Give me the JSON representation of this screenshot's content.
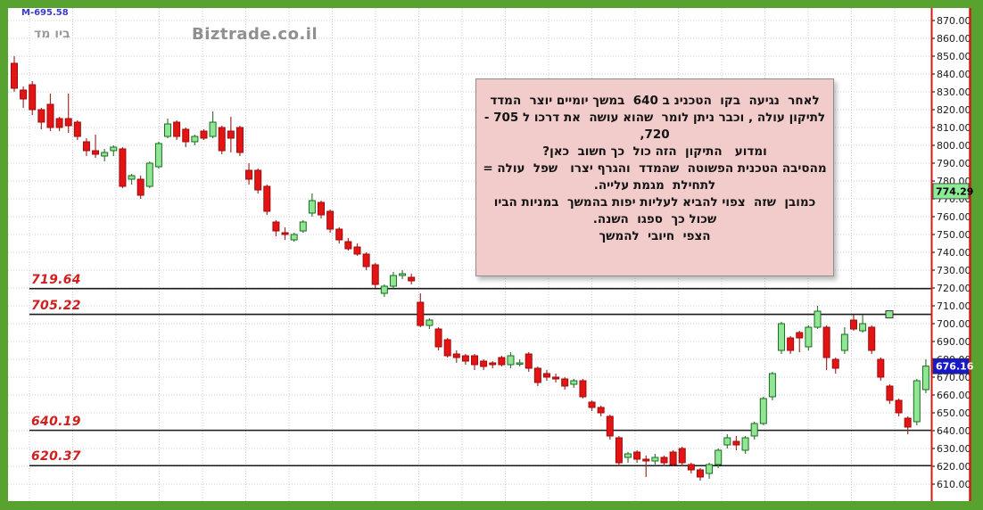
{
  "frame": {
    "border_color": "#58a22f",
    "plot_background": "#ffffff",
    "axis_border_color": "#d11a1a"
  },
  "header": {
    "readout": "M-695.58",
    "symbol": "ביו מד",
    "watermark": "Biztrade.co.il"
  },
  "annotation": {
    "bg": "#f2cbcb",
    "border": "#8f8f8f",
    "lines": [
      "לאחר  נגיעה  בקו  הטכנינ ב 640  במשך יומיים יוצר  המדד",
      "לתיקון עולה , וכבר ניתן לומר  שהוא עושה  את דרכו ל 705 -",
      "720,",
      "ומדוע   התיקון  הזה כול  כך חשוב  כאן?",
      "מהסיבה הטכנית הפשוטה  שהמדד  והגרף יצרו   שפל  עולה =",
      "לתחילת  מגמת עלייה.",
      "כמובן  שזה  צפוי להביא לעליות יפות בהמשך  במניות הביו",
      "שכול כך  ספגו  השנה.",
      "הצפי  חיובי  להמשך"
    ]
  },
  "chart_data": {
    "type": "candlestick",
    "ylim": [
      610,
      870
    ],
    "grid": true,
    "y_ticks": [
      "870.00",
      "860.00",
      "850.00",
      "840.00",
      "830.00",
      "820.00",
      "810.00",
      "800.00",
      "790.00",
      "780.00",
      "770.00",
      "760.00",
      "750.00",
      "740.00",
      "730.00",
      "720.00",
      "710.00",
      "700.00",
      "690.00",
      "680.00",
      "670.00",
      "660.00",
      "650.00",
      "640.00",
      "630.00",
      "620.00",
      "610.00"
    ],
    "up_color": "#90e693",
    "up_border": "#1a6b22",
    "down_color": "#e41414",
    "down_border": "#9c0c0c",
    "last_price_label": {
      "label": "676.16",
      "value": 676.16,
      "bg": "#1717cc",
      "fg": "#ffffff"
    },
    "highlight_label": {
      "label": "774.29",
      "value": 774.29,
      "bg": "#8cec95",
      "fg": "#000000"
    },
    "trendlines": [
      {
        "label": "719.64",
        "value": 719.64
      },
      {
        "label": "705.22",
        "value": 705.22
      },
      {
        "label": "640.19",
        "value": 640.19
      },
      {
        "label": "620.37",
        "value": 620.37
      }
    ],
    "handle": {
      "line_value": 705.22,
      "x": 997
    },
    "candles": [
      [
        846,
        850,
        830,
        832
      ],
      [
        831,
        833,
        821,
        826
      ],
      [
        834,
        836,
        817,
        820
      ],
      [
        820,
        821,
        809,
        813
      ],
      [
        823,
        829,
        808,
        810
      ],
      [
        815,
        816,
        808,
        810
      ],
      [
        815,
        829,
        807,
        811
      ],
      [
        813,
        814,
        803,
        805
      ],
      [
        802,
        804,
        794,
        797
      ],
      [
        797,
        806,
        793,
        795
      ],
      [
        794,
        798,
        791,
        796
      ],
      [
        797,
        800,
        794,
        799
      ],
      [
        798,
        799,
        776,
        777
      ],
      [
        781,
        784,
        778,
        783
      ],
      [
        781,
        783,
        770,
        772
      ],
      [
        777,
        791,
        776,
        790
      ],
      [
        788,
        802,
        787,
        801
      ],
      [
        805,
        815,
        804,
        812
      ],
      [
        813,
        814,
        803,
        805
      ],
      [
        809,
        810,
        799,
        802
      ],
      [
        802,
        806,
        800,
        805
      ],
      [
        808,
        809,
        803,
        804
      ],
      [
        805,
        819,
        804,
        813
      ],
      [
        810,
        811,
        795,
        797
      ],
      [
        808,
        816,
        796,
        804
      ],
      [
        810,
        811,
        794,
        796
      ],
      [
        786,
        790,
        778,
        781
      ],
      [
        786,
        787,
        773,
        775
      ],
      [
        777,
        778,
        761,
        763
      ],
      [
        757,
        758,
        749,
        752
      ],
      [
        751,
        754,
        747,
        750
      ],
      [
        747,
        751,
        746,
        750
      ],
      [
        752,
        758,
        751,
        757
      ],
      [
        762,
        773,
        760,
        769
      ],
      [
        768,
        769,
        759,
        761
      ],
      [
        763,
        764,
        751,
        753
      ],
      [
        753,
        754,
        745,
        747
      ],
      [
        746,
        748,
        741,
        742
      ],
      [
        743,
        745,
        738,
        739
      ],
      [
        739,
        740,
        730,
        732
      ],
      [
        733,
        734,
        720,
        722
      ],
      [
        717,
        722,
        715,
        721
      ],
      [
        721,
        729,
        720,
        727
      ],
      [
        727,
        730,
        725,
        728
      ],
      [
        726,
        728,
        722,
        724
      ],
      [
        712,
        717,
        698,
        699
      ],
      [
        699,
        703,
        697,
        702
      ],
      [
        697,
        698,
        685,
        687
      ],
      [
        691,
        692,
        681,
        682
      ],
      [
        683,
        685,
        678,
        681
      ],
      [
        682,
        683,
        677,
        679
      ],
      [
        682,
        683,
        674,
        677
      ],
      [
        679,
        680,
        674,
        676
      ],
      [
        678,
        679,
        675,
        677
      ],
      [
        681,
        682,
        676,
        677
      ],
      [
        677,
        684,
        675,
        682
      ],
      [
        678,
        680,
        676,
        678
      ],
      [
        683,
        684,
        673,
        675
      ],
      [
        675,
        676,
        665,
        667
      ],
      [
        672,
        674,
        668,
        670
      ],
      [
        670,
        672,
        667,
        669
      ],
      [
        669,
        670,
        663,
        665
      ],
      [
        666,
        669,
        664,
        668
      ],
      [
        668,
        669,
        658,
        659
      ],
      [
        656,
        657,
        651,
        653
      ],
      [
        653,
        654,
        648,
        650
      ],
      [
        648,
        649,
        635,
        637
      ],
      [
        636,
        637,
        620,
        622
      ],
      [
        625,
        628,
        622,
        627
      ],
      [
        628,
        629,
        622,
        624
      ],
      [
        624,
        626,
        614,
        623
      ],
      [
        623,
        627,
        621,
        625
      ],
      [
        625,
        626,
        620,
        622
      ],
      [
        628,
        629,
        620,
        621
      ],
      [
        630,
        631,
        620,
        622
      ],
      [
        621,
        622,
        616,
        618
      ],
      [
        618,
        619,
        612,
        614
      ],
      [
        616,
        622,
        613,
        621
      ],
      [
        621,
        630,
        619,
        629
      ],
      [
        632,
        638,
        630,
        636
      ],
      [
        634,
        637,
        629,
        632
      ],
      [
        629,
        637,
        627,
        636
      ],
      [
        637,
        645,
        635,
        644
      ],
      [
        644,
        659,
        643,
        658
      ],
      [
        659,
        673,
        657,
        672
      ],
      [
        685,
        701,
        683,
        700
      ],
      [
        692,
        693,
        683,
        685
      ],
      [
        695,
        696,
        684,
        692
      ],
      [
        687,
        699,
        685,
        698
      ],
      [
        698,
        710,
        697,
        707
      ],
      [
        698,
        699,
        674,
        681
      ],
      [
        680,
        681,
        672,
        675
      ],
      [
        685,
        698,
        683,
        694
      ],
      [
        702,
        705,
        696,
        697
      ],
      [
        696,
        705,
        695,
        700
      ],
      [
        698,
        699,
        683,
        685
      ],
      [
        680,
        681,
        668,
        670
      ],
      [
        665,
        666,
        655,
        657
      ],
      [
        657,
        658,
        648,
        650
      ],
      [
        647,
        648,
        638,
        642
      ],
      [
        645,
        669,
        643,
        668
      ],
      [
        663,
        680,
        661,
        676.16
      ]
    ]
  }
}
